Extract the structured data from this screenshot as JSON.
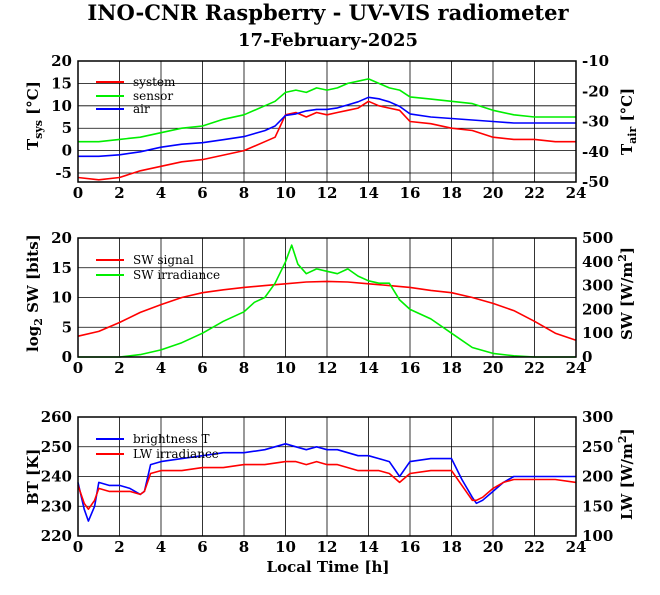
{
  "title": "INO-CNR Raspberry - UV-VIS radiometer",
  "subtitle": "17-February-2025",
  "xlabel": "Local Time [h]",
  "chart_data": [
    {
      "type": "line",
      "xlim": [
        0,
        24
      ],
      "ylim": [
        -7,
        20
      ],
      "y_ticks": [
        -5,
        0,
        5,
        10,
        15,
        20
      ],
      "y2lim": [
        -50,
        -10
      ],
      "y2_ticks": [
        -50,
        -40,
        -30,
        -20,
        -10
      ],
      "x_ticks": [
        0,
        2,
        4,
        6,
        8,
        10,
        12,
        14,
        16,
        18,
        20,
        22,
        24
      ],
      "ylabel": "T_sys [°C]",
      "y2label": "T_air [°C]",
      "grid": true,
      "legend_position": "top-left",
      "series": [
        {
          "name": "system",
          "color": "#ff0000",
          "axis": "left",
          "x": [
            0,
            1,
            2,
            3,
            4,
            5,
            6,
            7,
            8,
            9,
            9.5,
            10,
            10.5,
            11,
            11.5,
            12,
            12.5,
            13,
            13.5,
            14,
            14.5,
            15,
            15.5,
            16,
            17,
            18,
            19,
            20,
            21,
            22,
            23,
            24
          ],
          "y": [
            -6,
            -6.5,
            -6,
            -4.5,
            -3.5,
            -2.5,
            -2,
            -1,
            0,
            2,
            3,
            8,
            8.5,
            7.5,
            8.5,
            8,
            8.5,
            9,
            9.5,
            11,
            10,
            9.5,
            9,
            6.5,
            6,
            5,
            4.5,
            3,
            2.5,
            2.5,
            2,
            2
          ]
        },
        {
          "name": "sensor",
          "color": "#00ee00",
          "axis": "left",
          "x": [
            0,
            1,
            2,
            3,
            4,
            5,
            6,
            7,
            8,
            9,
            9.5,
            10,
            10.5,
            11,
            11.5,
            12,
            12.5,
            13,
            13.5,
            14,
            14.5,
            15,
            15.5,
            16,
            17,
            18,
            19,
            20,
            21,
            22,
            23,
            24
          ],
          "y": [
            2,
            2,
            2.5,
            3,
            4,
            5,
            5.5,
            7,
            8,
            10,
            11,
            13,
            13.5,
            13,
            14,
            13.5,
            14,
            15,
            15.5,
            16,
            15,
            14,
            13.5,
            12,
            11.5,
            11,
            10.5,
            9,
            8,
            7.5,
            7.5,
            7.5
          ]
        },
        {
          "name": "air",
          "color": "#0000ff",
          "axis": "right",
          "x": [
            0,
            1,
            2,
            3,
            4,
            5,
            6,
            7,
            8,
            9,
            9.5,
            10,
            10.5,
            11,
            11.5,
            12,
            12.5,
            13,
            13.5,
            14,
            14.5,
            15,
            15.5,
            16,
            17,
            18,
            19,
            20,
            21,
            22,
            23,
            24
          ],
          "y": [
            -41.5,
            -41.5,
            -41,
            -40,
            -38.5,
            -37.5,
            -37,
            -36,
            -35,
            -33,
            -31.5,
            -28,
            -27.5,
            -26.5,
            -26,
            -26,
            -25.5,
            -24.5,
            -23.5,
            -22,
            -22.5,
            -23.5,
            -25,
            -27.5,
            -28.5,
            -29,
            -29.5,
            -30,
            -30.5,
            -30.5,
            -30.5,
            -30.5
          ]
        }
      ]
    },
    {
      "type": "line",
      "xlim": [
        0,
        24
      ],
      "ylim": [
        0,
        20
      ],
      "y_ticks": [
        0,
        5,
        10,
        15,
        20
      ],
      "y2lim": [
        0,
        500
      ],
      "y2_ticks": [
        0,
        100,
        200,
        300,
        400,
        500
      ],
      "x_ticks": [
        0,
        2,
        4,
        6,
        8,
        10,
        12,
        14,
        16,
        18,
        20,
        22,
        24
      ],
      "ylabel": "log2 SW [bits]",
      "y2label": "SW [W/m2]",
      "grid": true,
      "legend_position": "top-left",
      "series": [
        {
          "name": "SW signal",
          "color": "#ff0000",
          "axis": "left",
          "x": [
            0,
            1,
            2,
            3,
            4,
            5,
            6,
            7,
            8,
            9,
            10,
            11,
            12,
            13,
            14,
            15,
            16,
            17,
            18,
            19,
            20,
            21,
            22,
            23,
            24
          ],
          "y": [
            3.5,
            4.3,
            5.8,
            7.5,
            8.8,
            10,
            10.8,
            11.3,
            11.7,
            12,
            12.3,
            12.6,
            12.7,
            12.6,
            12.3,
            12,
            11.7,
            11.2,
            10.8,
            10,
            9,
            7.8,
            6,
            4,
            2.8
          ]
        },
        {
          "name": "SW irradiance",
          "color": "#00ee00",
          "axis": "right",
          "x": [
            0,
            2,
            3,
            4,
            5,
            6,
            7,
            8,
            8.5,
            9,
            9.5,
            10,
            10.3,
            10.6,
            11,
            11.5,
            12,
            12.5,
            13,
            13.5,
            14,
            14.5,
            15,
            15.5,
            16,
            17,
            18,
            19,
            20,
            21,
            22,
            23,
            24
          ],
          "y": [
            0,
            0,
            10,
            30,
            60,
            100,
            150,
            190,
            230,
            250,
            310,
            400,
            470,
            390,
            350,
            370,
            360,
            350,
            370,
            340,
            320,
            310,
            310,
            240,
            200,
            160,
            100,
            40,
            15,
            5,
            0,
            0,
            0
          ]
        }
      ]
    },
    {
      "type": "line",
      "xlim": [
        0,
        24
      ],
      "ylim": [
        220,
        260
      ],
      "y_ticks": [
        220,
        230,
        240,
        250,
        260
      ],
      "y2lim": [
        100,
        300
      ],
      "y2_ticks": [
        100,
        150,
        200,
        250,
        300
      ],
      "x_ticks": [
        0,
        2,
        4,
        6,
        8,
        10,
        12,
        14,
        16,
        18,
        20,
        22,
        24
      ],
      "ylabel": "BT [K]",
      "y2label": "LW [W/m2]",
      "grid": true,
      "legend_position": "top-left",
      "series": [
        {
          "name": "brightness T",
          "color": "#0000ff",
          "axis": "left",
          "x": [
            0,
            0.3,
            0.5,
            0.8,
            1,
            1.5,
            2,
            2.5,
            3,
            3.2,
            3.5,
            4,
            5,
            6,
            7,
            8,
            9,
            10,
            10.5,
            11,
            11.5,
            12,
            12.5,
            13,
            13.5,
            14,
            14.5,
            15,
            15.5,
            16,
            17,
            18,
            18.5,
            19,
            19.2,
            19.5,
            20,
            20.5,
            21,
            22,
            23,
            24
          ],
          "y": [
            238,
            229,
            225,
            230,
            238,
            237,
            237,
            236,
            234,
            235,
            244,
            245,
            246,
            247,
            248,
            248,
            249,
            251,
            250,
            249,
            250,
            249,
            249,
            248,
            247,
            247,
            246,
            245,
            240,
            245,
            246,
            246,
            239,
            233,
            231,
            232,
            235,
            238,
            240,
            240,
            240,
            240
          ]
        },
        {
          "name": "LW irradiance",
          "color": "#ff0000",
          "axis": "left",
          "x": [
            0,
            0.3,
            0.5,
            0.8,
            1,
            1.5,
            2,
            2.5,
            3,
            3.2,
            3.5,
            4,
            5,
            6,
            7,
            8,
            9,
            10,
            10.5,
            11,
            11.5,
            12,
            12.5,
            13,
            13.5,
            14,
            14.5,
            15,
            15.5,
            16,
            17,
            18,
            18.5,
            19,
            19.2,
            19.5,
            20,
            20.5,
            21,
            22,
            23,
            24
          ],
          "y": [
            237,
            231,
            229,
            232,
            236,
            235,
            235,
            235,
            234,
            235,
            241,
            242,
            242,
            243,
            243,
            244,
            244,
            245,
            245,
            244,
            245,
            244,
            244,
            243,
            242,
            242,
            242,
            241,
            238,
            241,
            242,
            242,
            237,
            232,
            232,
            233,
            236,
            238,
            239,
            239,
            239,
            238
          ]
        }
      ]
    }
  ]
}
